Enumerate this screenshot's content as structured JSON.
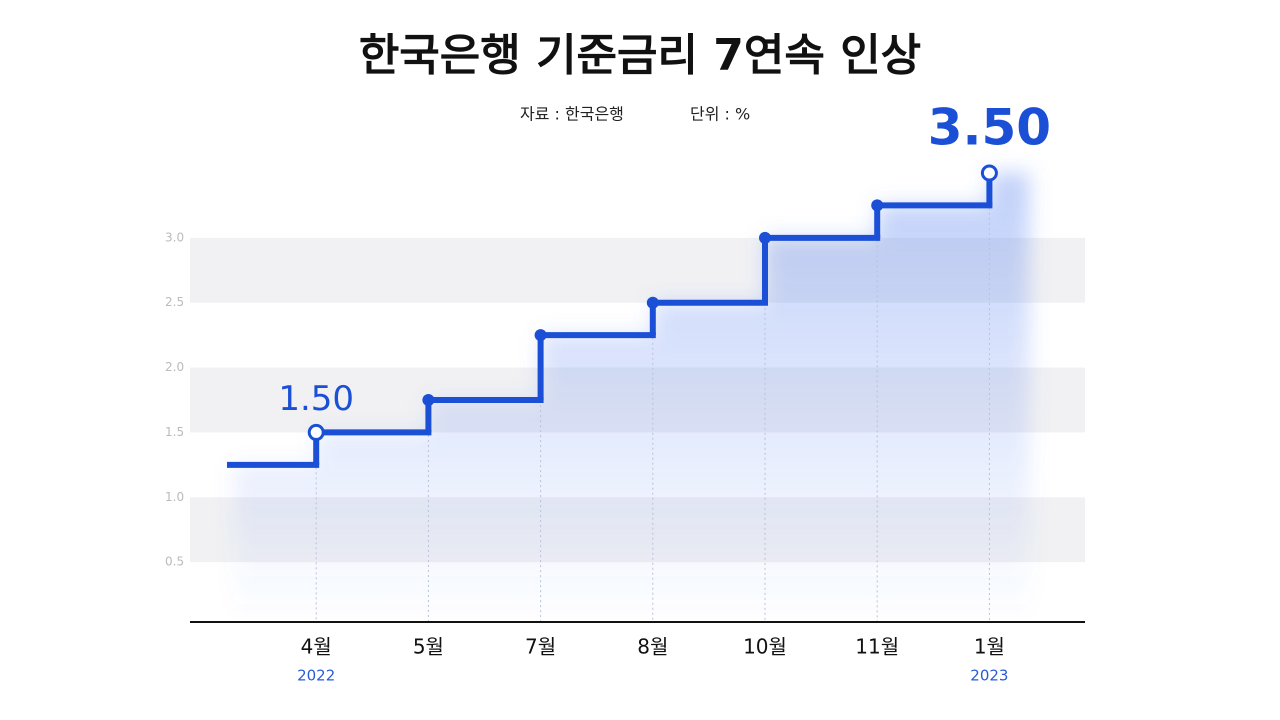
{
  "chart_data": {
    "type": "step",
    "title": "한국은행 기준금리 7연속 인상",
    "source": "자료 : 한국은행",
    "unit": "단위 : %",
    "categories": [
      null,
      "4월",
      "5월",
      "7월",
      "8월",
      "10월",
      "11월",
      "1월"
    ],
    "year_labels": [
      null,
      "2022",
      null,
      null,
      null,
      null,
      null,
      "2023"
    ],
    "values": [
      1.25,
      1.5,
      1.75,
      2.25,
      2.5,
      3.0,
      3.25,
      3.5
    ],
    "value_labels": [
      null,
      "1.50",
      null,
      null,
      null,
      null,
      null,
      "3.50"
    ],
    "color": "#1a4fd6",
    "ylim": [
      0,
      3.5
    ],
    "yticks": [
      0.5,
      {
        "value": 1.0,
        "label": "1.0"
      },
      1.5,
      {
        "value": 2.0,
        "label": "2.0"
      },
      2.5,
      {
        "value": 3.0,
        "label": "3.0"
      }
    ],
    "grid": true
  }
}
